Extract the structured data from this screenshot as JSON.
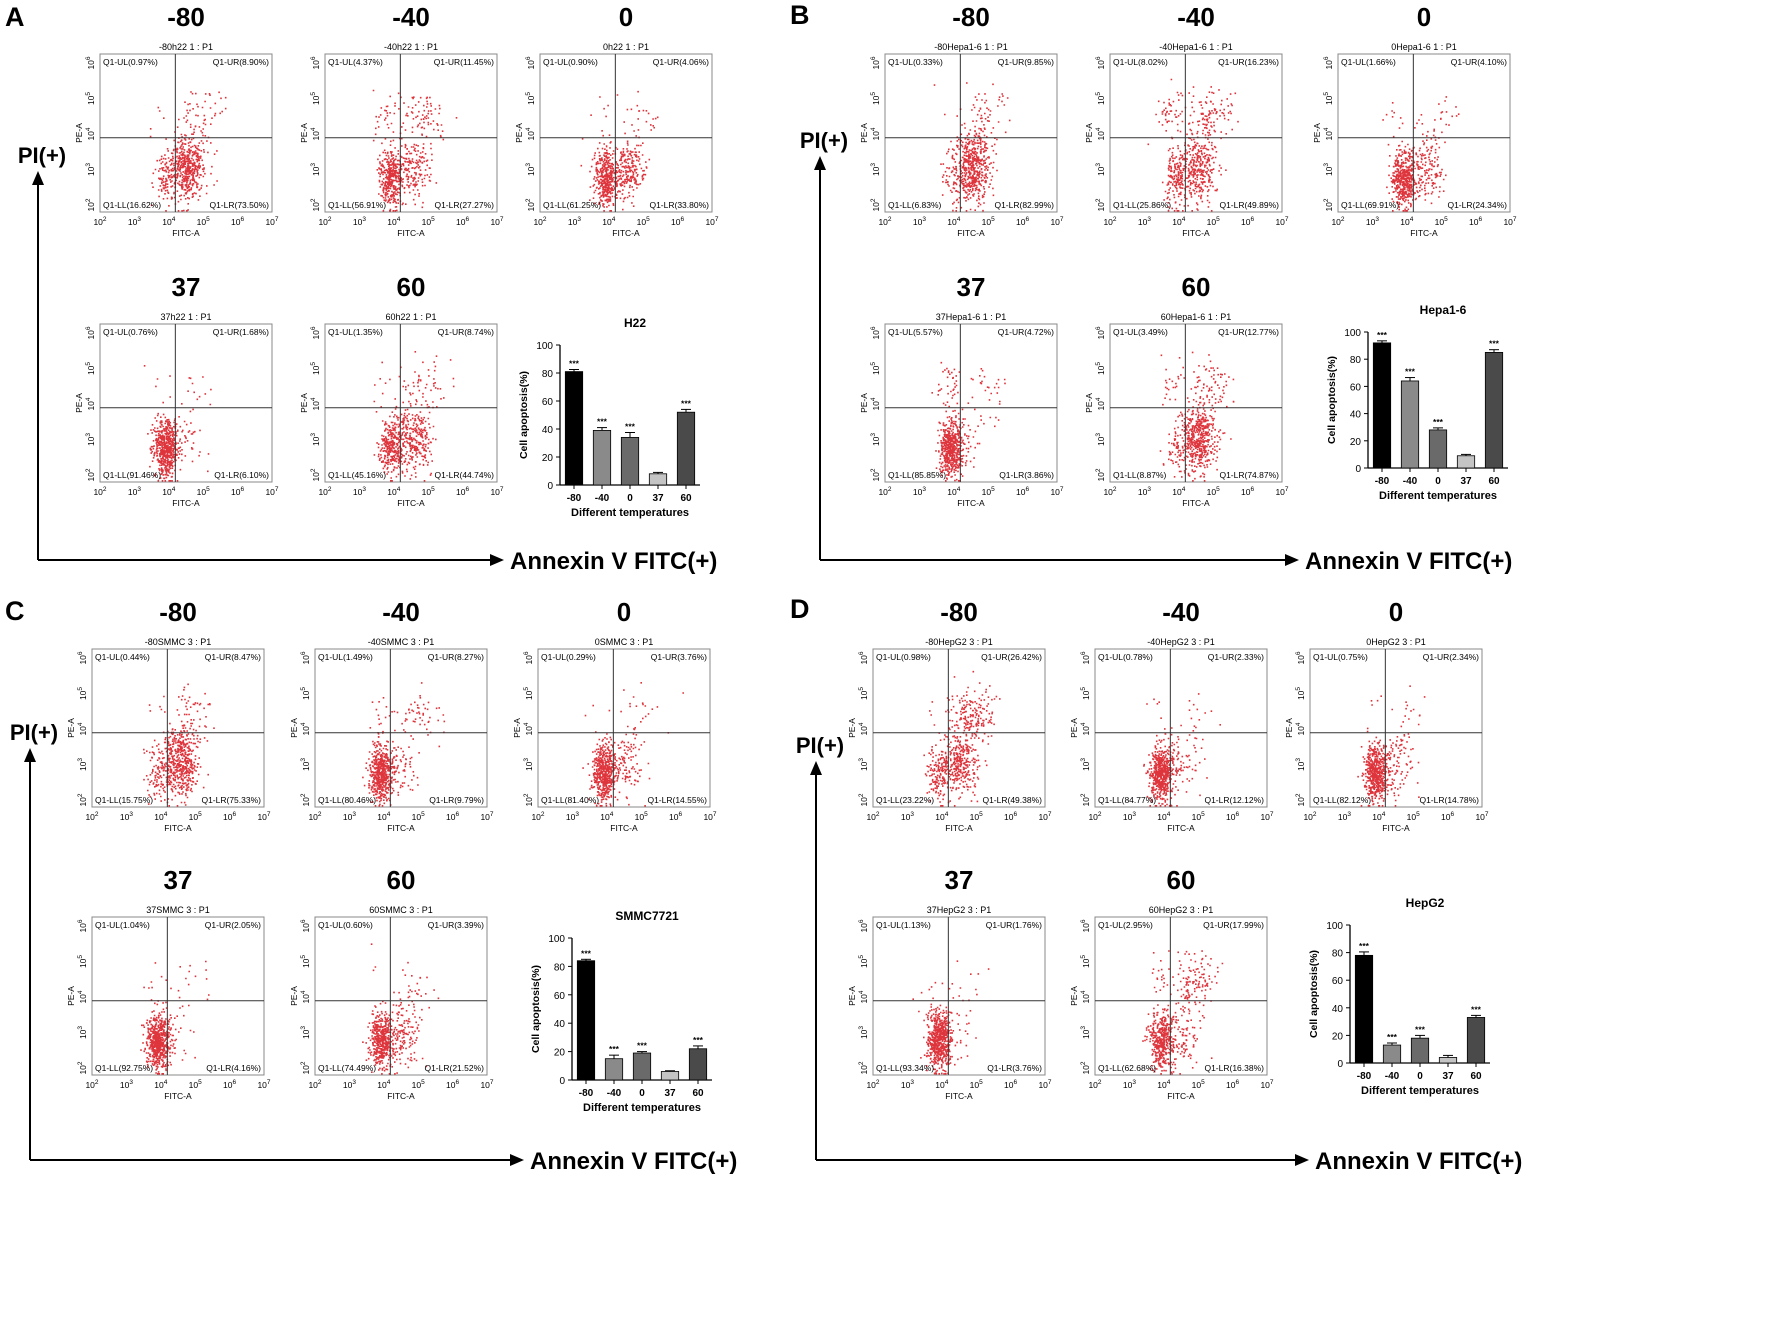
{
  "figure": {
    "axis_labels": {
      "pi": "PI(+)",
      "annexin": "Annexin V FITC(+)"
    },
    "flow_axes": {
      "x_label": "FITC-A",
      "y_label": "PE-A",
      "tick_base": "10",
      "tick_exponents": [
        "2",
        "3",
        "4",
        "5",
        "6",
        "7"
      ]
    },
    "temps": [
      "-80",
      "-40",
      "0",
      "37",
      "60"
    ]
  },
  "panels": [
    {
      "letter": "A",
      "plots": [
        {
          "temp": "-80",
          "title": "-80h22 1 : P1",
          "UL": "Q1-UL(0.97%)",
          "UR": "Q1-UR(8.90%)",
          "LL": "Q1-LL(16.62%)",
          "LR": "Q1-LR(73.50%)"
        },
        {
          "temp": "-40",
          "title": "-40h22 1 : P1",
          "UL": "Q1-UL(4.37%)",
          "UR": "Q1-UR(11.45%)",
          "LL": "Q1-LL(56.91%)",
          "LR": "Q1-LR(27.27%)"
        },
        {
          "temp": "0",
          "title": "0h22 1 : P1",
          "UL": "Q1-UL(0.90%)",
          "UR": "Q1-UR(4.06%)",
          "LL": "Q1-LL(61.25%)",
          "LR": "Q1-LR(33.80%)"
        },
        {
          "temp": "37",
          "title": "37h22 1 : P1",
          "UL": "Q1-UL(0.76%)",
          "UR": "Q1-UR(1.68%)",
          "LL": "Q1-LL(91.46%)",
          "LR": "Q1-LR(6.10%)"
        },
        {
          "temp": "60",
          "title": "60h22 1 : P1",
          "UL": "Q1-UL(1.35%)",
          "UR": "Q1-UR(8.74%)",
          "LL": "Q1-LL(45.16%)",
          "LR": "Q1-LR(44.74%)"
        }
      ]
    },
    {
      "letter": "B",
      "plots": [
        {
          "temp": "-80",
          "title": "-80Hepa1-6 1 : P1",
          "UL": "Q1-UL(0.33%)",
          "UR": "Q1-UR(9.85%)",
          "LL": "Q1-LL(6.83%)",
          "LR": "Q1-LR(82.99%)"
        },
        {
          "temp": "-40",
          "title": "-40Hepa1-6 1 : P1",
          "UL": "Q1-UL(8.02%)",
          "UR": "Q1-UR(16.23%)",
          "LL": "Q1-LL(25.86%)",
          "LR": "Q1-LR(49.89%)"
        },
        {
          "temp": "0",
          "title": "0Hepa1-6 1 : P1",
          "UL": "Q1-UL(1.66%)",
          "UR": "Q1-UR(4.10%)",
          "LL": "Q1-LL(69.91%)",
          "LR": "Q1-LR(24.34%)"
        },
        {
          "temp": "37",
          "title": "37Hepa1-6 1 : P1",
          "UL": "Q1-UL(5.57%)",
          "UR": "Q1-UR(4.72%)",
          "LL": "Q1-LL(85.85%)",
          "LR": "Q1-LR(3.86%)"
        },
        {
          "temp": "60",
          "title": "60Hepa1-6 1 : P1",
          "UL": "Q1-UL(3.49%)",
          "UR": "Q1-UR(12.77%)",
          "LL": "Q1-LL(8.87%)",
          "LR": "Q1-LR(74.87%)"
        }
      ]
    },
    {
      "letter": "C",
      "plots": [
        {
          "temp": "-80",
          "title": "-80SMMC 3 : P1",
          "UL": "Q1-UL(0.44%)",
          "UR": "Q1-UR(8.47%)",
          "LL": "Q1-LL(15.75%)",
          "LR": "Q1-LR(75.33%)"
        },
        {
          "temp": "-40",
          "title": "-40SMMC 3 : P1",
          "UL": "Q1-UL(1.49%)",
          "UR": "Q1-UR(8.27%)",
          "LL": "Q1-LL(80.46%)",
          "LR": "Q1-LR(9.79%)"
        },
        {
          "temp": "0",
          "title": "0SMMC 3 : P1",
          "UL": "Q1-UL(0.29%)",
          "UR": "Q1-UR(3.76%)",
          "LL": "Q1-LL(81.40%)",
          "LR": "Q1-LR(14.55%)"
        },
        {
          "temp": "37",
          "title": "37SMMC 3 : P1",
          "UL": "Q1-UL(1.04%)",
          "UR": "Q1-UR(2.05%)",
          "LL": "Q1-LL(92.75%)",
          "LR": "Q1-LR(4.16%)"
        },
        {
          "temp": "60",
          "title": "60SMMC 3 : P1",
          "UL": "Q1-UL(0.60%)",
          "UR": "Q1-UR(3.39%)",
          "LL": "Q1-LL(74.49%)",
          "LR": "Q1-LR(21.52%)"
        }
      ]
    },
    {
      "letter": "D",
      "plots": [
        {
          "temp": "-80",
          "title": "-80HepG2 3 : P1",
          "UL": "Q1-UL(0.98%)",
          "UR": "Q1-UR(26.42%)",
          "LL": "Q1-LL(23.22%)",
          "LR": "Q1-LR(49.38%)"
        },
        {
          "temp": "-40",
          "title": "-40HepG2 3 : P1",
          "UL": "Q1-UL(0.78%)",
          "UR": "Q1-UR(2.33%)",
          "LL": "Q1-LL(84.77%)",
          "LR": "Q1-LR(12.12%)"
        },
        {
          "temp": "0",
          "title": "0HepG2 3 : P1",
          "UL": "Q1-UL(0.75%)",
          "UR": "Q1-UR(2.34%)",
          "LL": "Q1-LL(82.12%)",
          "LR": "Q1-LR(14.78%)"
        },
        {
          "temp": "37",
          "title": "37HepG2 3 : P1",
          "UL": "Q1-UL(1.13%)",
          "UR": "Q1-UR(1.76%)",
          "LL": "Q1-LL(93.34%)",
          "LR": "Q1-LR(3.76%)"
        },
        {
          "temp": "60",
          "title": "60HepG2 3 : P1",
          "UL": "Q1-UL(2.95%)",
          "UR": "Q1-UR(17.99%)",
          "LL": "Q1-LL(62.68%)",
          "LR": "Q1-LR(16.38%)"
        }
      ]
    }
  ],
  "chart_data": [
    {
      "type": "bar",
      "title": "H22",
      "categories": [
        "-80",
        "-40",
        "0",
        "37",
        "60"
      ],
      "values": [
        81,
        39,
        34,
        8,
        52
      ],
      "errors": [
        1.5,
        2,
        3.5,
        1,
        2
      ],
      "significance": [
        "***",
        "***",
        "***",
        "",
        "***"
      ],
      "xlabel": "Different temperatures",
      "ylabel": "Cell apoptosis(%)",
      "ylim": [
        0,
        100
      ],
      "yticks": [
        "0",
        "20",
        "40",
        "60",
        "80",
        "100"
      ],
      "colors": [
        "#000000",
        "#8a8a8a",
        "#6a6a6a",
        "#c4c4c4",
        "#4a4a4a"
      ]
    },
    {
      "type": "bar",
      "title": "Hepa1-6",
      "categories": [
        "-80",
        "-40",
        "0",
        "37",
        "60"
      ],
      "values": [
        92,
        64,
        28,
        9,
        85
      ],
      "errors": [
        1.5,
        2.5,
        1.5,
        1,
        2
      ],
      "significance": [
        "***",
        "***",
        "***",
        "",
        "***"
      ],
      "xlabel": "Different temperatures",
      "ylabel": "Cell apoptosis(%)",
      "ylim": [
        0,
        100
      ],
      "yticks": [
        "0",
        "20",
        "40",
        "60",
        "80",
        "100"
      ],
      "colors": [
        "#000000",
        "#8a8a8a",
        "#6a6a6a",
        "#c4c4c4",
        "#4a4a4a"
      ]
    },
    {
      "type": "bar",
      "title": "SMMC7721",
      "categories": [
        "-80",
        "-40",
        "0",
        "37",
        "60"
      ],
      "values": [
        84,
        15,
        19,
        6,
        22
      ],
      "errors": [
        1,
        2.5,
        1,
        0.5,
        2
      ],
      "significance": [
        "***",
        "***",
        "***",
        "",
        "***"
      ],
      "xlabel": "Different temperatures",
      "ylabel": "Cell apoptosis(%)",
      "ylim": [
        0,
        100
      ],
      "yticks": [
        "0",
        "20",
        "40",
        "60",
        "80",
        "100"
      ],
      "colors": [
        "#000000",
        "#8a8a8a",
        "#6a6a6a",
        "#c4c4c4",
        "#4a4a4a"
      ]
    },
    {
      "type": "bar",
      "title": "HepG2",
      "categories": [
        "-80",
        "-40",
        "0",
        "37",
        "60"
      ],
      "values": [
        78,
        13,
        18,
        4,
        33
      ],
      "errors": [
        2.5,
        1.5,
        2,
        1.5,
        1.5
      ],
      "significance": [
        "***",
        "***",
        "***",
        "",
        "***"
      ],
      "xlabel": "Different temperatures",
      "ylabel": "Cell apoptosis(%)",
      "ylim": [
        0,
        100
      ],
      "yticks": [
        "0",
        "20",
        "40",
        "60",
        "80",
        "100"
      ],
      "colors": [
        "#000000",
        "#8a8a8a",
        "#6a6a6a",
        "#c4c4c4",
        "#4a4a4a"
      ]
    }
  ]
}
